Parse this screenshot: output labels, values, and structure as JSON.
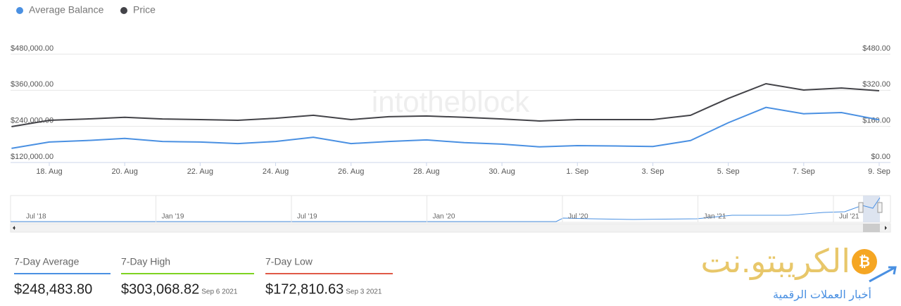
{
  "chart_data": {
    "type": "line",
    "categories": [
      null,
      "18. Aug",
      null,
      "20. Aug",
      null,
      "22. Aug",
      null,
      "24. Aug",
      null,
      "26. Aug",
      null,
      "28. Aug",
      null,
      "30. Aug",
      null,
      "1. Sep",
      null,
      "3. Sep",
      null,
      "5. Sep",
      null,
      "7. Sep",
      null,
      "9. Sep"
    ],
    "series": [
      {
        "name": "Average Balance",
        "color": "#4a90e2",
        "values": [
          167000,
          188000,
          193000,
          200000,
          190000,
          188000,
          183000,
          190000,
          204000,
          183000,
          190000,
          195000,
          186000,
          181000,
          172000,
          176000,
          175000,
          173000,
          193000,
          252000,
          303000,
          282000,
          286000,
          262000
        ]
      },
      {
        "name": "Price",
        "color": "#434348",
        "axis": "y2",
        "values": [
          159,
          187,
          193,
          200,
          193,
          190,
          187,
          196,
          209,
          190,
          203,
          206,
          200,
          193,
          184,
          190,
          190,
          190,
          209,
          284,
          349,
          321,
          330,
          318
        ]
      }
    ],
    "ylim": [
      120000,
      480000
    ],
    "yticks": [
      {
        "value": 120000,
        "label": "$120,000.00"
      },
      {
        "value": 240000,
        "label": "$240,000.00"
      },
      {
        "value": 360000,
        "label": "$360,000.00"
      },
      {
        "value": 480000,
        "label": "$480,000.00"
      }
    ],
    "y2lim": [
      0,
      480
    ],
    "y2ticks": [
      {
        "value": 0,
        "label": "$0.00"
      },
      {
        "value": 160,
        "label": "$160.00"
      },
      {
        "value": 320,
        "label": "$320.00"
      },
      {
        "value": 480,
        "label": "$480.00"
      }
    ],
    "grid": true,
    "legend": "top-left"
  },
  "watermark": "intotheblock",
  "navigator": {
    "labels": [
      "Jul '18",
      "Jan '19",
      "Jul '19",
      "Jan '20",
      "Jul '20",
      "Jan '21",
      "Jul '21"
    ]
  },
  "stats": [
    {
      "title": "7-Day Average",
      "value": "$248,483.80",
      "color": "#4a90e2"
    },
    {
      "title": "7-Day High",
      "value": "$303,068.82",
      "date": "Sep 6 2021",
      "color": "#7ed321"
    },
    {
      "title": "7-Day Low",
      "value": "$172,810.63",
      "date": "Sep 3 2021",
      "color": "#e05a47"
    }
  ],
  "logo": {
    "name": "الكريبتو.نت",
    "tagline": "أخبار العملات الرقمية"
  }
}
